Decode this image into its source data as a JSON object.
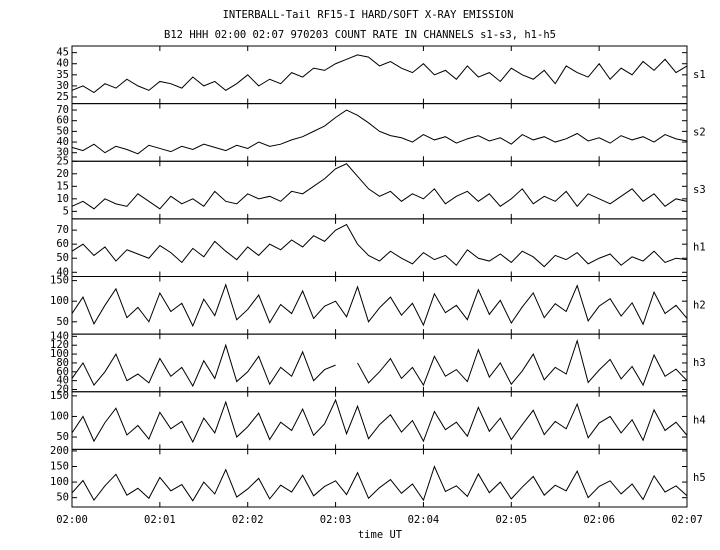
{
  "chart_data": {
    "type": "line",
    "title": "INTERBALL-Tail RF15-I HARD/SOFT X-RAY EMISSION",
    "subtitle": "B12 HHH 02:00 02:07 970203  COUNT RATE IN CHANNELS s1-s3, h1-h5",
    "xlabel": "time UT",
    "xlim": [
      0,
      7
    ],
    "xticks": [
      {
        "value": 0,
        "label": "02:00"
      },
      {
        "value": 1,
        "label": "02:01"
      },
      {
        "value": 2,
        "label": "02:02"
      },
      {
        "value": 3,
        "label": "02:03"
      },
      {
        "value": 4,
        "label": "02:04"
      },
      {
        "value": 5,
        "label": "02:05"
      },
      {
        "value": 6,
        "label": "02:06"
      },
      {
        "value": 7,
        "label": "02:07"
      }
    ],
    "x": [
      0,
      0.125,
      0.25,
      0.375,
      0.5,
      0.625,
      0.75,
      0.875,
      1,
      1.125,
      1.25,
      1.375,
      1.5,
      1.625,
      1.75,
      1.875,
      2,
      2.125,
      2.25,
      2.375,
      2.5,
      2.625,
      2.75,
      2.875,
      3,
      3.125,
      3.25,
      3.375,
      3.5,
      3.625,
      3.75,
      3.875,
      4,
      4.125,
      4.25,
      4.375,
      4.5,
      4.625,
      4.75,
      4.875,
      5,
      5.125,
      5.25,
      5.375,
      5.5,
      5.625,
      5.75,
      5.875,
      6,
      6.125,
      6.25,
      6.375,
      6.5,
      6.625,
      6.75,
      6.875,
      7
    ],
    "series": [
      {
        "name": "s1",
        "color": "#000000",
        "ylim": [
          22,
          48
        ],
        "yticks": [
          25,
          30,
          35,
          40,
          45
        ],
        "values": [
          28,
          30,
          27,
          31,
          29,
          33,
          30,
          28,
          32,
          31,
          29,
          34,
          30,
          32,
          28,
          31,
          35,
          30,
          33,
          31,
          36,
          34,
          38,
          37,
          40,
          42,
          44,
          43,
          39,
          41,
          38,
          36,
          40,
          35,
          37,
          33,
          39,
          34,
          36,
          32,
          38,
          35,
          33,
          37,
          31,
          39,
          36,
          34,
          40,
          33,
          38,
          35,
          41,
          37,
          42,
          36,
          39
        ]
      },
      {
        "name": "s2",
        "color": "#000000",
        "ylim": [
          22,
          76
        ],
        "yticks": [
          30,
          40,
          50,
          60,
          70
        ],
        "values": [
          35,
          32,
          38,
          30,
          36,
          33,
          29,
          37,
          34,
          31,
          36,
          33,
          38,
          35,
          32,
          37,
          34,
          40,
          36,
          38,
          42,
          45,
          50,
          55,
          63,
          70,
          65,
          58,
          50,
          46,
          44,
          40,
          47,
          42,
          45,
          39,
          43,
          46,
          41,
          44,
          38,
          47,
          42,
          45,
          40,
          43,
          48,
          41,
          44,
          39,
          46,
          42,
          45,
          40,
          47,
          43,
          41
        ]
      },
      {
        "name": "s3",
        "color": "#000000",
        "ylim": [
          2,
          25
        ],
        "yticks": [
          5,
          10,
          15,
          20,
          25
        ],
        "values": [
          7,
          9,
          6,
          10,
          8,
          7,
          12,
          9,
          6,
          11,
          8,
          10,
          7,
          13,
          9,
          8,
          12,
          10,
          11,
          9,
          13,
          12,
          15,
          18,
          22,
          24,
          19,
          14,
          11,
          13,
          9,
          12,
          10,
          14,
          8,
          11,
          13,
          9,
          12,
          7,
          10,
          14,
          8,
          11,
          9,
          13,
          7,
          12,
          10,
          8,
          11,
          14,
          9,
          12,
          7,
          10,
          9
        ]
      },
      {
        "name": "h1",
        "color": "#000000",
        "ylim": [
          37,
          78
        ],
        "yticks": [
          40,
          50,
          60,
          70
        ],
        "values": [
          55,
          60,
          52,
          58,
          48,
          56,
          53,
          50,
          59,
          54,
          47,
          57,
          51,
          62,
          55,
          49,
          58,
          52,
          60,
          56,
          63,
          58,
          66,
          62,
          70,
          74,
          60,
          52,
          48,
          55,
          50,
          46,
          54,
          49,
          52,
          45,
          56,
          50,
          48,
          53,
          47,
          55,
          51,
          44,
          52,
          49,
          54,
          46,
          50,
          53,
          45,
          51,
          48,
          55,
          47,
          50,
          49
        ]
      },
      {
        "name": "h2",
        "color": "#000000",
        "ylim": [
          20,
          160
        ],
        "yticks": [
          50,
          100,
          150
        ],
        "values": [
          70,
          110,
          45,
          90,
          130,
          60,
          85,
          50,
          120,
          75,
          95,
          40,
          105,
          65,
          140,
          55,
          80,
          115,
          48,
          92,
          70,
          125,
          58,
          88,
          100,
          62,
          135,
          50,
          84,
          110,
          66,
          95,
          42,
          118,
          72,
          90,
          55,
          128,
          68,
          102,
          47,
          86,
          120,
          60,
          94,
          75,
          138,
          52,
          88,
          106,
          64,
          96,
          44,
          122,
          70,
          90,
          58
        ]
      },
      {
        "name": "h3",
        "color": "#000000",
        "ylim": [
          15,
          145
        ],
        "yticks": [
          20,
          40,
          60,
          80,
          100,
          120,
          140
        ],
        "values": [
          45,
          80,
          30,
          60,
          100,
          40,
          55,
          35,
          90,
          50,
          70,
          28,
          85,
          45,
          120,
          38,
          60,
          95,
          32,
          70,
          50,
          105,
          40,
          65,
          75,
          null,
          80,
          35,
          60,
          90,
          45,
          70,
          30,
          95,
          50,
          65,
          38,
          110,
          48,
          80,
          32,
          62,
          100,
          42,
          70,
          55,
          130,
          36,
          64,
          88,
          44,
          72,
          30,
          98,
          50,
          66,
          40
        ]
      },
      {
        "name": "h4",
        "color": "#000000",
        "ylim": [
          20,
          160
        ],
        "yticks": [
          50,
          100,
          150
        ],
        "values": [
          60,
          100,
          40,
          85,
          120,
          55,
          78,
          45,
          110,
          70,
          88,
          38,
          96,
          60,
          135,
          50,
          75,
          108,
          44,
          86,
          66,
          118,
          54,
          82,
          140,
          58,
          125,
          46,
          80,
          104,
          62,
          90,
          40,
          112,
          68,
          86,
          52,
          122,
          64,
          96,
          44,
          80,
          115,
          56,
          88,
          70,
          130,
          48,
          84,
          100,
          60,
          92,
          42,
          116,
          66,
          86,
          54
        ]
      },
      {
        "name": "h5",
        "color": "#000000",
        "ylim": [
          20,
          205
        ],
        "yticks": [
          50,
          100,
          150,
          200
        ],
        "values": [
          65,
          105,
          42,
          88,
          125,
          58,
          80,
          48,
          115,
          72,
          92,
          40,
          100,
          62,
          140,
          52,
          78,
          112,
          46,
          90,
          68,
          122,
          56,
          86,
          104,
          60,
          130,
          48,
          82,
          108,
          64,
          94,
          42,
          150,
          70,
          88,
          54,
          126,
          66,
          100,
          46,
          84,
          118,
          58,
          90,
          72,
          135,
          50,
          86,
          104,
          62,
          94,
          44,
          120,
          68,
          88,
          56
        ]
      }
    ]
  }
}
